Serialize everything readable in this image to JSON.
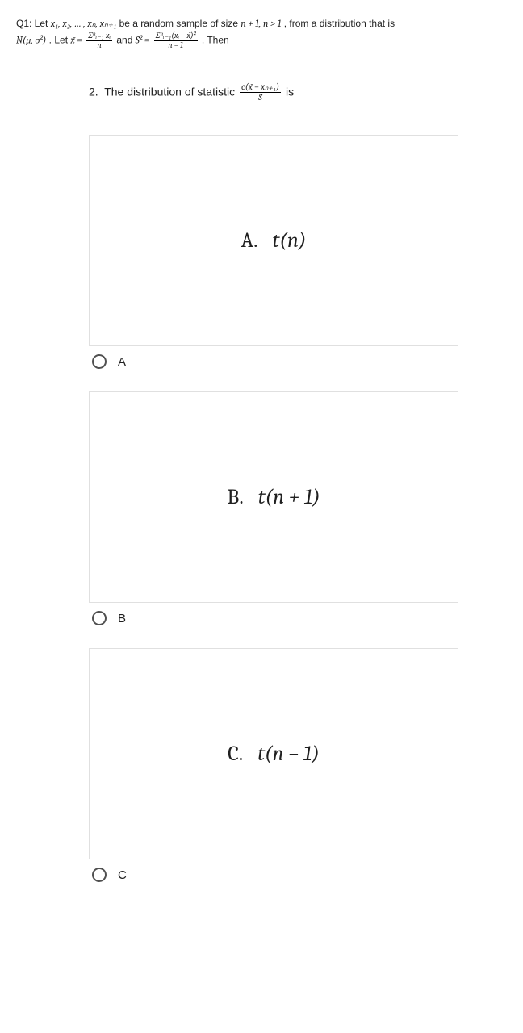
{
  "q1": {
    "intro_part1": "Q1: Let ",
    "sample": "x₁, x₂, … , xₙ, xₙ₊₁",
    "intro_part2": " be a random sample of size ",
    "size": "n + 1, n > 1",
    "intro_part3": ", from a distribution that is ",
    "dist": "N(μ, σ²)",
    "intro_part4": ". Let ",
    "xbar_eq": "x̄ =",
    "xbar_num": "Σⁿᵢ₌₁ xᵢ",
    "xbar_den": "n",
    "intro_part5": " and ",
    "s2_eq": "S² =",
    "s2_num": "Σⁿᵢ₌₁(xᵢ − x̄)²",
    "s2_den": "n − 1",
    "intro_part6": ". Then"
  },
  "subq": {
    "number": "2.",
    "text1": "The distribution of statistic ",
    "frac_num": "c(x̄ − xₙ₊₁)",
    "frac_den": "S",
    "text2": " is"
  },
  "options": {
    "a": {
      "letter": "A.",
      "math": "t(n)",
      "label": "A"
    },
    "b": {
      "letter": "B.",
      "math": "t(n + 1)",
      "label": "B"
    },
    "c": {
      "letter": "C.",
      "math": "t(n − 1)",
      "label": "C"
    }
  }
}
